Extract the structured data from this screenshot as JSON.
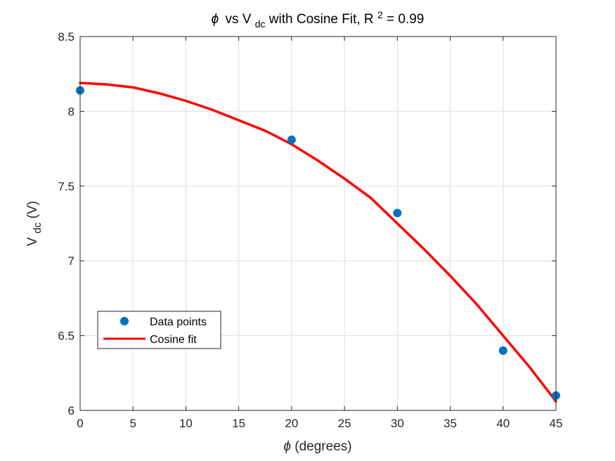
{
  "chart_data": {
    "type": "scatter",
    "title": {
      "prefix": "vs V",
      "symbol": "ϕ",
      "subscript": "dc",
      "middle": " with Cosine Fit, R",
      "superscript": "2",
      "suffix": " = 0.99"
    },
    "xlabel": {
      "symbol": "ϕ",
      "text": " (degrees)"
    },
    "ylabel": {
      "main": "V",
      "subscript": "dc",
      "suffix": " (V)"
    },
    "xlim": [
      0,
      45
    ],
    "ylim": [
      6,
      8.5
    ],
    "xticks": [
      "0",
      "5",
      "10",
      "15",
      "20",
      "25",
      "30",
      "35",
      "40",
      "45"
    ],
    "yticks": [
      "6",
      "6.5",
      "7",
      "7.5",
      "8",
      "8.5"
    ],
    "grid": true,
    "legend_position": "lower-left",
    "series": [
      {
        "name": "Data points",
        "kind": "scatter",
        "color": "#0072BD",
        "x": [
          0,
          20,
          30,
          40,
          45
        ],
        "y": [
          8.14,
          7.81,
          7.32,
          6.4,
          6.1
        ]
      },
      {
        "name": "Cosine fit",
        "kind": "line",
        "color": "#FF0000",
        "x": [
          0,
          2.5,
          5,
          7.5,
          10,
          12.5,
          15,
          17.5,
          20,
          22.5,
          25,
          27.5,
          30,
          32.5,
          35,
          37.5,
          40,
          42.5,
          45
        ],
        "y": [
          8.19,
          8.18,
          8.16,
          8.12,
          8.07,
          8.01,
          7.94,
          7.87,
          7.78,
          7.67,
          7.55,
          7.42,
          7.25,
          7.08,
          6.9,
          6.71,
          6.5,
          6.29,
          6.06
        ]
      }
    ]
  }
}
